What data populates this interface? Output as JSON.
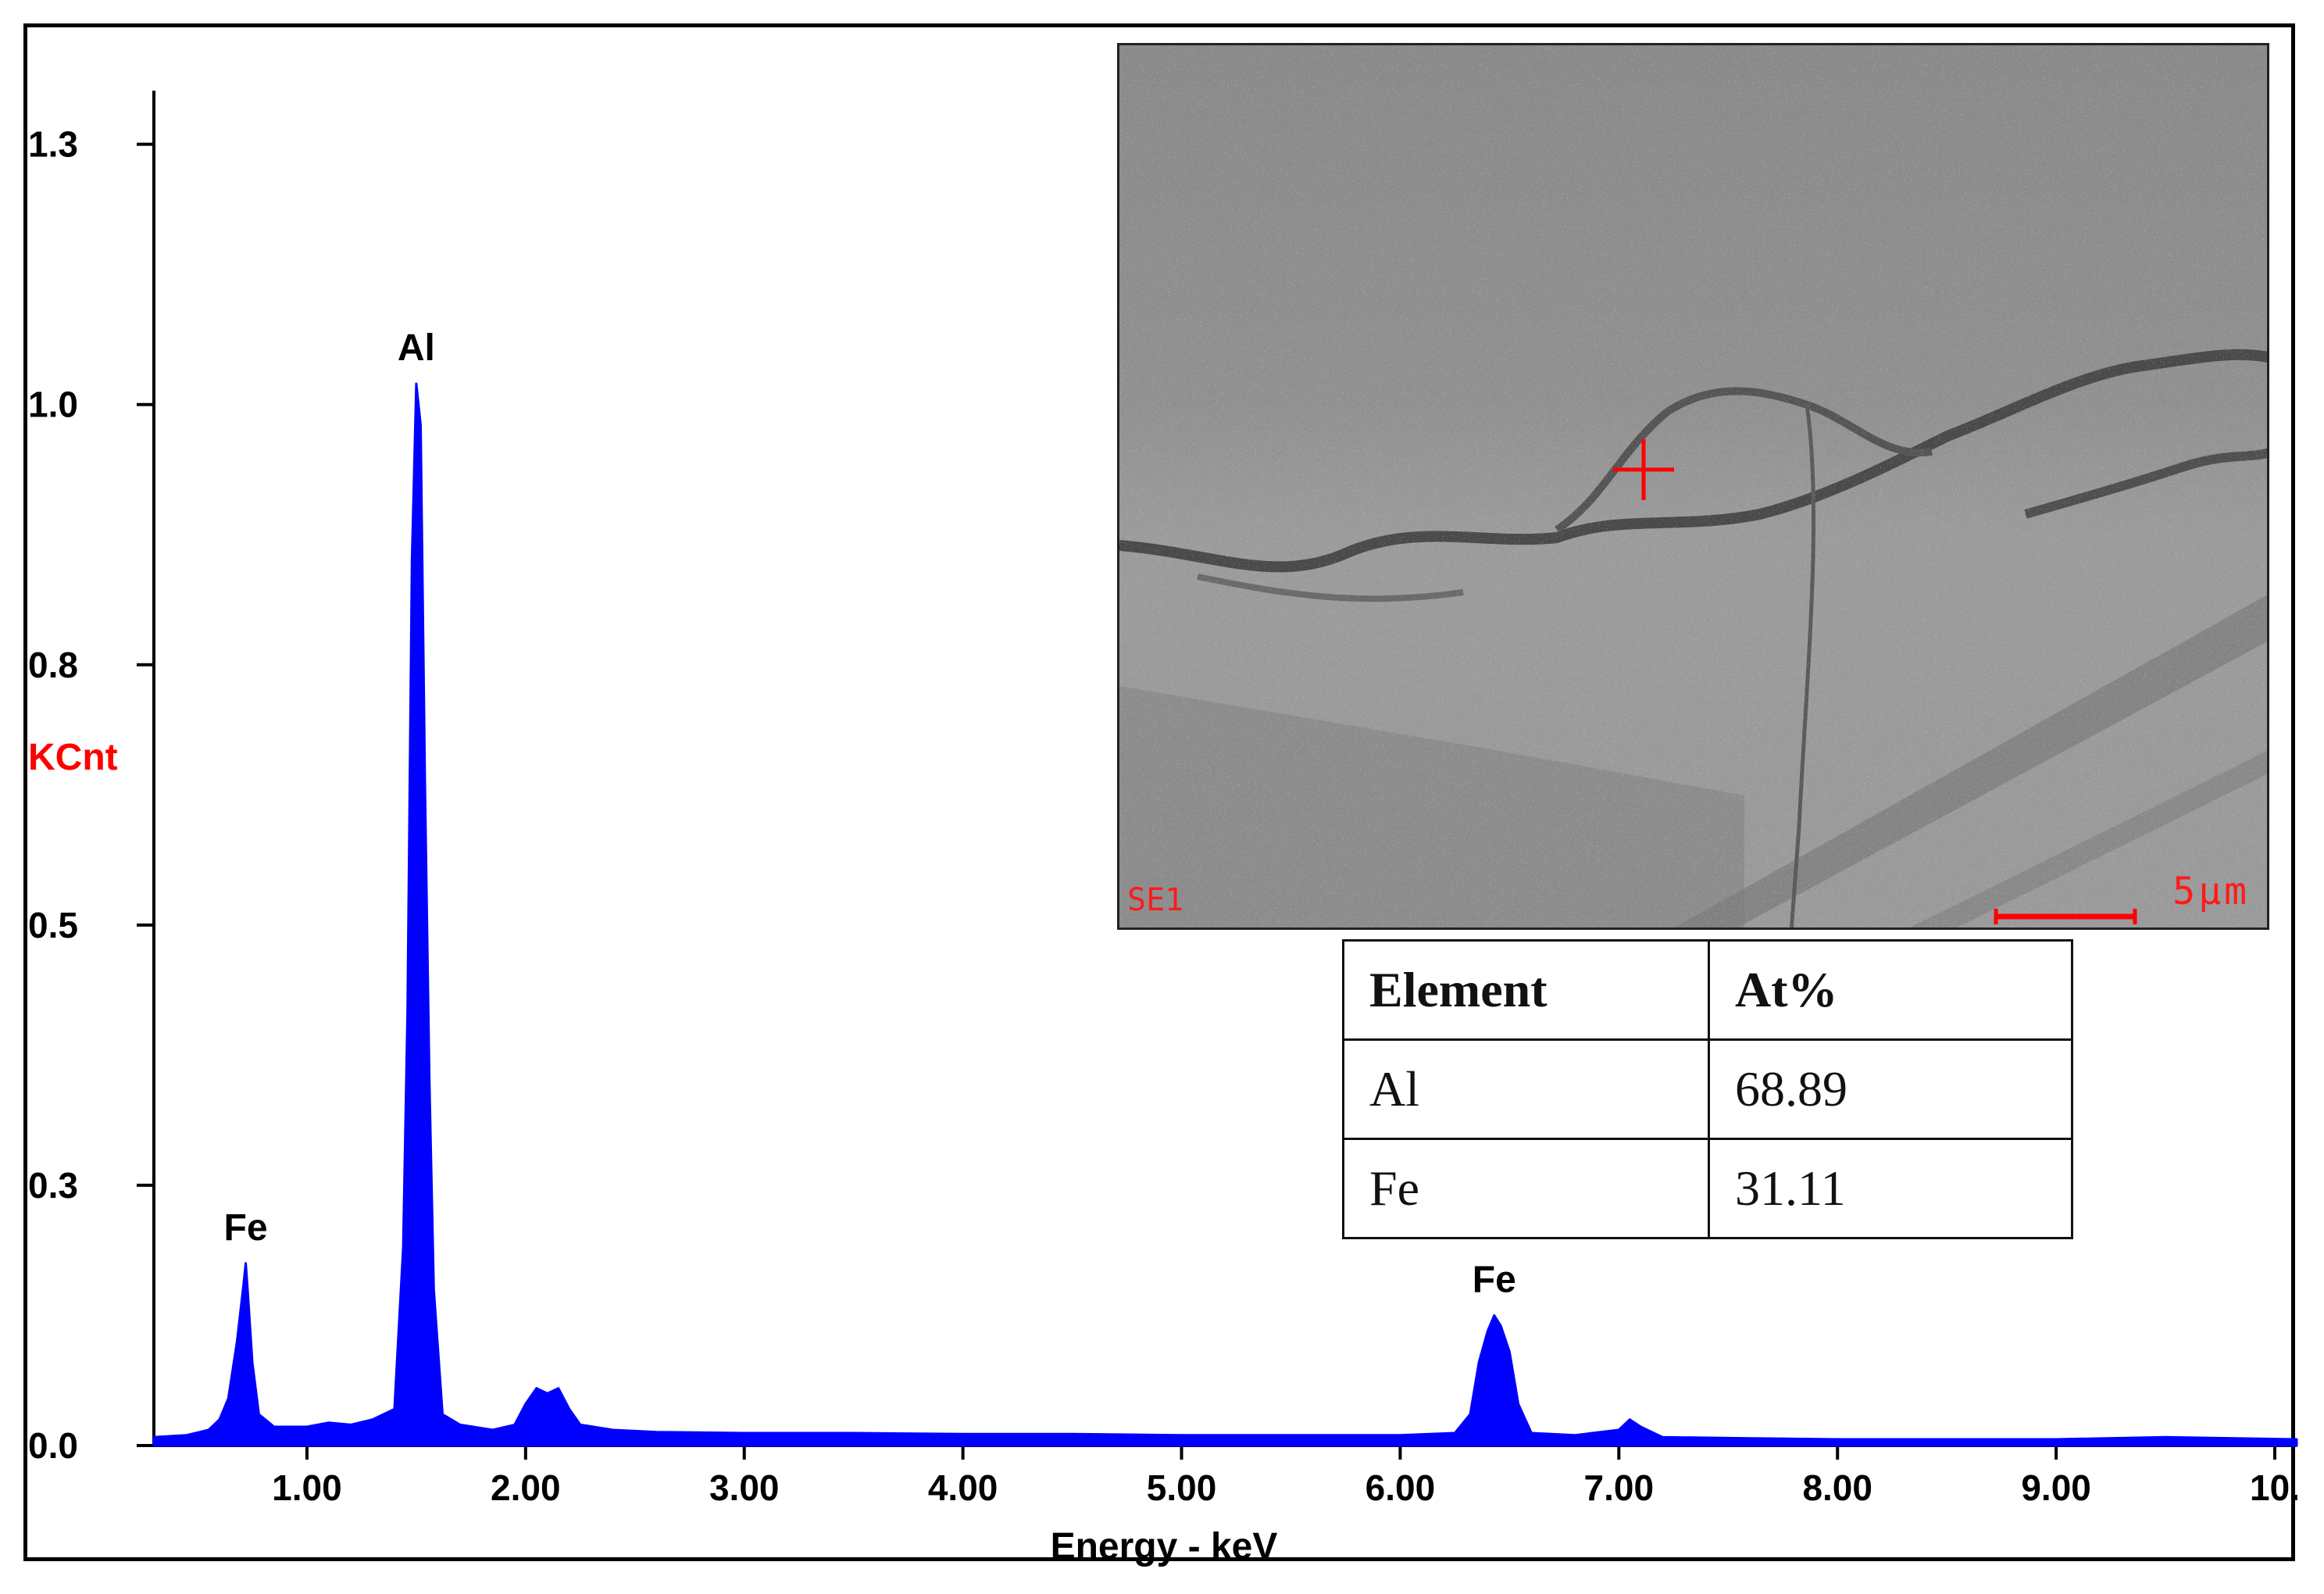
{
  "chart_data": {
    "type": "line",
    "xlabel": "Energy - keV",
    "ylabel": "KCnt",
    "xlim": [
      0.3,
      10.1
    ],
    "ylim": [
      0.0,
      1.3
    ],
    "x_ticks": [
      {
        "value": 1.0,
        "label": "1.00"
      },
      {
        "value": 2.0,
        "label": "2.00"
      },
      {
        "value": 3.0,
        "label": "3.00"
      },
      {
        "value": 4.0,
        "label": "4.00"
      },
      {
        "value": 5.0,
        "label": "5.00"
      },
      {
        "value": 6.0,
        "label": "6.00"
      },
      {
        "value": 7.0,
        "label": "7.00"
      },
      {
        "value": 8.0,
        "label": "8.00"
      },
      {
        "value": 9.0,
        "label": "9.00"
      },
      {
        "value": 10.0,
        "label": "10."
      }
    ],
    "y_ticks": [
      {
        "value": 0.0,
        "label": "0.0"
      },
      {
        "value": 0.25,
        "label": "0.3"
      },
      {
        "value": 0.5,
        "label": "0.5"
      },
      {
        "value": 0.75,
        "label": "0.8"
      },
      {
        "value": 1.0,
        "label": "1.0"
      },
      {
        "value": 1.25,
        "label": "1.3"
      }
    ],
    "series_color": "#0000ff",
    "ylabel_color": "#ff0000",
    "points": [
      [
        0.3,
        0.008
      ],
      [
        0.45,
        0.01
      ],
      [
        0.55,
        0.015
      ],
      [
        0.6,
        0.025
      ],
      [
        0.64,
        0.045
      ],
      [
        0.68,
        0.1
      ],
      [
        0.71,
        0.155
      ],
      [
        0.72,
        0.175
      ],
      [
        0.73,
        0.145
      ],
      [
        0.75,
        0.08
      ],
      [
        0.78,
        0.03
      ],
      [
        0.85,
        0.018
      ],
      [
        1.0,
        0.018
      ],
      [
        1.1,
        0.022
      ],
      [
        1.2,
        0.02
      ],
      [
        1.3,
        0.025
      ],
      [
        1.4,
        0.035
      ],
      [
        1.44,
        0.19
      ],
      [
        1.46,
        0.42
      ],
      [
        1.48,
        0.85
      ],
      [
        1.5,
        1.02
      ],
      [
        1.52,
        0.98
      ],
      [
        1.54,
        0.63
      ],
      [
        1.56,
        0.35
      ],
      [
        1.58,
        0.15
      ],
      [
        1.62,
        0.03
      ],
      [
        1.7,
        0.02
      ],
      [
        1.85,
        0.015
      ],
      [
        1.95,
        0.02
      ],
      [
        2.0,
        0.04
      ],
      [
        2.05,
        0.055
      ],
      [
        2.1,
        0.05
      ],
      [
        2.15,
        0.055
      ],
      [
        2.2,
        0.035
      ],
      [
        2.25,
        0.02
      ],
      [
        2.4,
        0.015
      ],
      [
        2.6,
        0.013
      ],
      [
        3.0,
        0.012
      ],
      [
        3.5,
        0.012
      ],
      [
        4.0,
        0.011
      ],
      [
        4.5,
        0.011
      ],
      [
        5.0,
        0.01
      ],
      [
        5.5,
        0.01
      ],
      [
        6.0,
        0.01
      ],
      [
        6.25,
        0.012
      ],
      [
        6.32,
        0.03
      ],
      [
        6.36,
        0.08
      ],
      [
        6.4,
        0.11
      ],
      [
        6.43,
        0.125
      ],
      [
        6.46,
        0.115
      ],
      [
        6.5,
        0.09
      ],
      [
        6.54,
        0.04
      ],
      [
        6.6,
        0.012
      ],
      [
        6.8,
        0.01
      ],
      [
        7.0,
        0.015
      ],
      [
        7.05,
        0.025
      ],
      [
        7.1,
        0.018
      ],
      [
        7.2,
        0.008
      ],
      [
        7.6,
        0.007
      ],
      [
        8.0,
        0.006
      ],
      [
        8.5,
        0.006
      ],
      [
        9.0,
        0.006
      ],
      [
        9.5,
        0.008
      ],
      [
        10.1,
        0.006
      ]
    ],
    "peak_labels": [
      {
        "text": "Fe",
        "x": 0.72,
        "y": 0.175
      },
      {
        "text": "Al",
        "x": 1.5,
        "y": 1.02
      },
      {
        "text": "Fe",
        "x": 6.43,
        "y": 0.125
      }
    ]
  },
  "inset": {
    "mode_label": "SE1",
    "scale_label": "5μm",
    "marker_color": "#ff0000"
  },
  "composition_table": {
    "headers": [
      "Element",
      "At%"
    ],
    "rows": [
      [
        "Al",
        "68.89"
      ],
      [
        "Fe",
        "31.11"
      ]
    ]
  }
}
